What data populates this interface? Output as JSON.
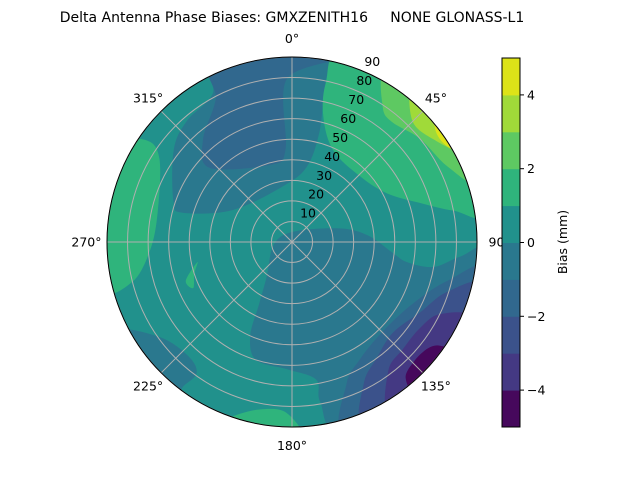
{
  "chart_data": {
    "type": "heatmap",
    "subtype": "polar-filled-contour",
    "title": "Delta Antenna Phase Biases: GMXZENITH16     NONE GLONASS-L1",
    "angular_axis": {
      "direction": "clockwise",
      "zero_location": "top",
      "tick_labels": [
        {
          "deg": 0,
          "label": "0°"
        },
        {
          "deg": 45,
          "label": "45°"
        },
        {
          "deg": 90,
          "label": "90°"
        },
        {
          "deg": 135,
          "label": "135°"
        },
        {
          "deg": 180,
          "label": "180°"
        },
        {
          "deg": 225,
          "label": "225°"
        },
        {
          "deg": 270,
          "label": "270°"
        },
        {
          "deg": 315,
          "label": "315°"
        }
      ]
    },
    "radial_axis": {
      "range": [
        0,
        90
      ],
      "tick_values": [
        10,
        20,
        30,
        40,
        50,
        60,
        70,
        80,
        90
      ],
      "tick_labels": [
        "10",
        "20",
        "30",
        "40",
        "50",
        "60",
        "70",
        "80",
        "90"
      ],
      "grid": true
    },
    "colorbar": {
      "label": "Bias (mm)",
      "range": [
        -5,
        5
      ],
      "levels": [
        -5,
        -4,
        -3,
        -2,
        -1,
        0,
        1,
        2,
        3,
        4,
        5
      ],
      "colors": [
        "#46085c",
        "#443983",
        "#3b528b",
        "#31688e",
        "#2a788e",
        "#21918c",
        "#2fb47c",
        "#5ec962",
        "#a0da39",
        "#dde318"
      ],
      "tick_values": [
        -4,
        -2,
        0,
        2,
        4
      ],
      "tick_labels": [
        "−4",
        "−2",
        "0",
        "2",
        "4"
      ],
      "colormap": "viridis"
    },
    "background_level": [
      0,
      1
    ],
    "regions": [
      {
        "level": [
          -1,
          0
        ],
        "points": [
          [
            -23,
            98
          ],
          [
            13,
            92
          ],
          [
            12,
            86
          ],
          [
            12,
            75
          ],
          [
            14,
            55
          ],
          [
            11,
            37
          ],
          [
            -12,
            27
          ],
          [
            -62,
            33
          ],
          [
            -75,
            55
          ],
          [
            -71,
            61
          ],
          [
            -52,
            73
          ],
          [
            -41,
            78
          ],
          [
            -28,
            82
          ]
        ]
      },
      {
        "level": [
          -2,
          -1
        ],
        "points": [
          [
            -23,
            97
          ],
          [
            13,
            92
          ],
          [
            -2,
            79
          ],
          [
            -4,
            45
          ],
          [
            -16,
            39
          ],
          [
            -48,
            54
          ],
          [
            -41,
            66
          ],
          [
            -28,
            79
          ]
        ]
      },
      {
        "level": [
          -1,
          0
        ],
        "points": [
          [
            261,
            9
          ],
          [
            6,
            5
          ],
          [
            74,
            24
          ],
          [
            85,
            37
          ],
          [
            96,
            49
          ],
          [
            100,
            57
          ],
          [
            100,
            70
          ],
          [
            95,
            82
          ],
          [
            93,
            95
          ],
          [
            130,
            95
          ],
          [
            165,
            95
          ],
          [
            170,
            79
          ],
          [
            170,
            68
          ],
          [
            182,
            62
          ],
          [
            197,
            60
          ],
          [
            204,
            50
          ],
          [
            208,
            34
          ],
          [
            216,
            21
          ]
        ]
      },
      {
        "level": [
          -2,
          -1
        ],
        "points": [
          [
            98,
            95
          ],
          [
            104,
            78
          ],
          [
            117,
            66
          ],
          [
            134,
            62
          ],
          [
            150,
            66
          ],
          [
            159,
            74
          ],
          [
            164,
            95
          ],
          [
            130,
            95
          ]
        ]
      },
      {
        "level": [
          -3,
          -2
        ],
        "points": [
          [
            103,
            95
          ],
          [
            108,
            79
          ],
          [
            119,
            71
          ],
          [
            132,
            66
          ],
          [
            144,
            70
          ],
          [
            153,
            77
          ],
          [
            158,
            95
          ],
          [
            130,
            95
          ]
        ]
      },
      {
        "level": [
          -4,
          -3
        ],
        "points": [
          [
            113,
            95
          ],
          [
            116,
            80
          ],
          [
            124,
            75
          ],
          [
            134,
            75
          ],
          [
            143,
            78
          ],
          [
            150,
            95
          ],
          [
            130,
            95
          ]
        ]
      },
      {
        "level": [
          -5,
          -4
        ],
        "points": [
          [
            125,
            95
          ],
          [
            125,
            88
          ],
          [
            128,
            84
          ],
          [
            134,
            83
          ],
          [
            140,
            86
          ],
          [
            140,
            95
          ]
        ]
      },
      {
        "level": [
          1,
          2
        ],
        "points": [
          [
            15,
            95
          ],
          [
            12,
            79
          ],
          [
            14,
            63
          ],
          [
            24,
            49
          ],
          [
            46,
            46
          ],
          [
            63,
            52
          ],
          [
            73,
            65
          ],
          [
            79,
            80
          ],
          [
            81,
            95
          ],
          [
            45,
            95
          ]
        ]
      },
      {
        "level": [
          2,
          3
        ],
        "points": [
          [
            29,
            95
          ],
          [
            34,
            79
          ],
          [
            40,
            76
          ],
          [
            51,
            80
          ],
          [
            64,
            84
          ],
          [
            73,
            95
          ],
          [
            50,
            95
          ]
        ]
      },
      {
        "level": [
          3,
          4
        ],
        "points": [
          [
            38,
            95
          ],
          [
            45,
            83
          ],
          [
            54,
            85
          ],
          [
            63,
            95
          ],
          [
            50,
            95
          ]
        ]
      },
      {
        "level": [
          4,
          5
        ],
        "points": [
          [
            48,
            95
          ],
          [
            52,
            88.5
          ],
          [
            58,
            88.5
          ],
          [
            62,
            95
          ]
        ]
      },
      {
        "level": [
          1,
          2
        ],
        "points": [
          [
            -61,
            96
          ],
          [
            -55,
            86
          ],
          [
            -58,
            76
          ],
          [
            -77,
            67
          ],
          [
            -93,
            69
          ],
          [
            -104,
            80
          ],
          [
            -104,
            96
          ],
          [
            -80,
            96
          ]
        ]
      },
      {
        "level": [
          1,
          2
        ],
        "points": [
          [
            -102,
            47
          ],
          [
            -108,
            50
          ],
          [
            -115,
            53
          ],
          [
            -110,
            55
          ]
        ]
      },
      {
        "level": [
          1,
          2
        ],
        "points": [
          [
            199,
            90
          ],
          [
            191,
            83
          ],
          [
            182,
            83
          ],
          [
            178,
            95
          ],
          [
            200,
            95
          ]
        ]
      },
      {
        "level": [
          -1,
          0
        ],
        "points": [
          [
            243,
            95
          ],
          [
            234,
            79
          ],
          [
            222,
            75
          ],
          [
            216,
            79
          ],
          [
            217,
            88
          ],
          [
            217,
            95
          ],
          [
            230,
            95
          ]
        ]
      }
    ]
  }
}
